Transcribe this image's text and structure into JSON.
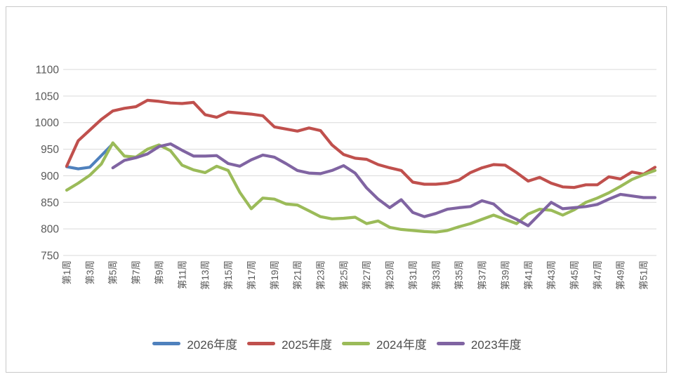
{
  "chart_data": {
    "type": "line",
    "title": "",
    "legend_position": "bottom",
    "grid": "horizontal",
    "x_axis": {
      "weeks_total": 52,
      "tick_weeks": [
        1,
        3,
        5,
        7,
        9,
        11,
        13,
        15,
        17,
        19,
        21,
        23,
        25,
        27,
        29,
        31,
        33,
        35,
        37,
        39,
        41,
        43,
        45,
        47,
        49,
        51
      ],
      "tick_labels": [
        "第1周",
        "第3周",
        "第5周",
        "第7周",
        "第9周",
        "第11周",
        "第13周",
        "第15周",
        "第17周",
        "第19周",
        "第21周",
        "第23周",
        "第25周",
        "第27周",
        "第29周",
        "第31周",
        "第33周",
        "第35周",
        "第37周",
        "第39周",
        "第41周",
        "第43周",
        "第45周",
        "第47周",
        "第49周",
        "第51周"
      ]
    },
    "y_axis": {
      "min": 750,
      "max": 1100,
      "step": 50,
      "ticks": [
        750,
        800,
        850,
        900,
        950,
        1000,
        1050,
        1100
      ]
    },
    "series": [
      {
        "name": "2026年度",
        "color": "#4F81BD",
        "values": [
          917,
          913,
          916,
          938,
          960
        ]
      },
      {
        "name": "2025年度",
        "color": "#C0504D",
        "values": [
          918,
          966,
          986,
          1006,
          1022,
          1027,
          1030,
          1042,
          1040,
          1037,
          1036,
          1038,
          1015,
          1010,
          1020,
          1018,
          1016,
          1013,
          992,
          988,
          984,
          990,
          985,
          958,
          940,
          933,
          931,
          921,
          915,
          910,
          888,
          884,
          884,
          886,
          892,
          906,
          915,
          921,
          920,
          906,
          890,
          897,
          886,
          879,
          878,
          883,
          883,
          898,
          894,
          907,
          903,
          916
        ]
      },
      {
        "name": "2024年度",
        "color": "#9BBB59",
        "values": [
          873,
          886,
          901,
          922,
          962,
          937,
          935,
          950,
          958,
          947,
          920,
          911,
          906,
          918,
          910,
          869,
          838,
          858,
          856,
          847,
          845,
          834,
          823,
          819,
          820,
          822,
          810,
          815,
          803,
          799,
          797,
          795,
          794,
          797,
          804,
          810,
          818,
          826,
          818,
          810,
          828,
          837,
          835,
          826,
          836,
          850,
          858,
          868,
          880,
          893,
          902,
          910
        ]
      },
      {
        "name": "2023年度",
        "color": "#8064A2",
        "values": [
          null,
          null,
          null,
          null,
          915,
          929,
          934,
          941,
          955,
          960,
          948,
          937,
          937,
          938,
          923,
          918,
          930,
          939,
          935,
          923,
          910,
          905,
          904,
          910,
          919,
          905,
          877,
          856,
          840,
          855,
          831,
          823,
          829,
          837,
          840,
          842,
          853,
          847,
          828,
          818,
          806,
          828,
          850,
          838,
          840,
          842,
          846,
          856,
          865,
          862,
          859,
          859
        ]
      }
    ]
  },
  "style": {
    "grid_color": "#D9D9D9",
    "axis_text_color": "#595959",
    "frame_border_color": "#C9C9C9",
    "background": "#FFFFFF",
    "line_width": 4.2
  }
}
